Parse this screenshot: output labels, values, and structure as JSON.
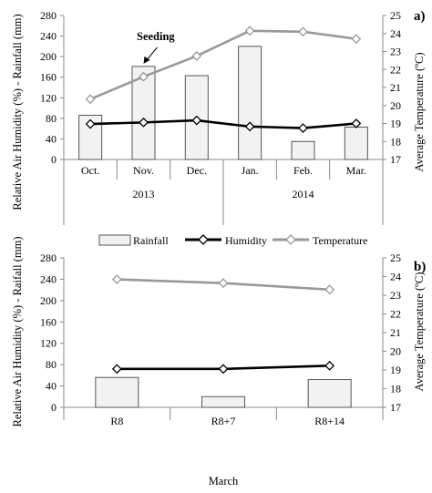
{
  "chart_data": [
    {
      "type": "bar",
      "panel_label": "a)",
      "categories": [
        "Oct.",
        "Nov.",
        "Dec.",
        "Jan.",
        "Feb.",
        "Mar."
      ],
      "year_groups": [
        {
          "label": "2013",
          "span": [
            "Oct.",
            "Dec."
          ]
        },
        {
          "label": "2014",
          "span": [
            "Jan.",
            "Mar."
          ]
        }
      ],
      "ylabel": "Relative Air Humidity (%) - Rainfall (mm)",
      "y2label": "Average Temperature (ºC)",
      "ylim": [
        0,
        280
      ],
      "y2lim": [
        17,
        25
      ],
      "yticks": [
        0,
        40,
        80,
        120,
        160,
        200,
        240,
        280
      ],
      "y2ticks": [
        17,
        18,
        19,
        20,
        21,
        22,
        23,
        24,
        25
      ],
      "series": [
        {
          "name": "Rainfall",
          "kind": "bar",
          "axis": "left",
          "values": [
            86,
            181,
            163,
            220,
            35,
            63
          ]
        },
        {
          "name": "Humidity",
          "kind": "line",
          "axis": "left",
          "values": [
            69,
            72,
            76,
            64,
            61,
            70
          ]
        },
        {
          "name": "Temperature",
          "kind": "line",
          "axis": "right",
          "values": [
            20.35,
            21.6,
            22.75,
            24.15,
            24.1,
            23.7
          ]
        }
      ],
      "annotation": {
        "text": "Seeding",
        "category": "Nov."
      }
    },
    {
      "type": "bar",
      "panel_label": "b)",
      "categories": [
        "R8",
        "R8+7",
        "R8+14"
      ],
      "xlabel": "March",
      "ylabel": "Relative Air Humidity (%) - Raifall (mm)",
      "y2label": "Average Temperature (ºC)",
      "ylim": [
        0,
        280
      ],
      "y2lim": [
        17,
        25
      ],
      "yticks": [
        0,
        40,
        80,
        120,
        160,
        200,
        240,
        280
      ],
      "y2ticks": [
        17,
        18,
        19,
        20,
        21,
        22,
        23,
        24,
        25
      ],
      "series": [
        {
          "name": "Rainfall",
          "kind": "bar",
          "axis": "left",
          "values": [
            56,
            20,
            52
          ]
        },
        {
          "name": "Humidity",
          "kind": "line",
          "axis": "left",
          "values": [
            72,
            72,
            78
          ]
        },
        {
          "name": "Temperature",
          "kind": "line",
          "axis": "right",
          "values": [
            23.85,
            23.65,
            23.3
          ]
        }
      ]
    }
  ],
  "legend": {
    "placement": "between-panels",
    "items": [
      {
        "label": "Rainfall",
        "kind": "bar"
      },
      {
        "label": "Humidity",
        "kind": "line"
      },
      {
        "label": "Temperature",
        "kind": "line"
      }
    ]
  },
  "colors": {
    "bar_fill": "#f2f2f2",
    "bar_stroke": "#555555",
    "humidity_line": "#000000",
    "temperature_line": "#999999",
    "axis": "#888888",
    "marker_fill": "#ffffff"
  }
}
